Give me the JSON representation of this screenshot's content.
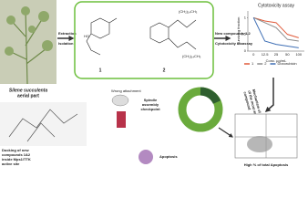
{
  "plant_caption": [
    "Silene succulenta",
    "aerial part"
  ],
  "steps": {
    "extraction": "Extraction",
    "isolation": "Isolation",
    "new_compounds": "New compounds 1,2",
    "bioassay": "Cytotoxicity bioassay"
  },
  "structures": {
    "label_1": "1",
    "label_2": "2",
    "chain_a": "(CH₂)₁₄CH₃",
    "chain_b": "(CH₂)₁₄CH₃",
    "ho": "HO"
  },
  "mechanism": [
    "Mechanism of cytotoxicity",
    "of the most active",
    "compound"
  ],
  "docking": [
    "Docking of new",
    "compounds 1&2",
    "inside Mps1/TTK",
    "active site"
  ],
  "cell_cycle": {
    "wrong": "Wrong attachment",
    "spindle": [
      "Spindle",
      "assembly",
      "checkpoint"
    ],
    "apoptosis": "Apoptosis"
  },
  "result": "High % of total Apoptosis",
  "chart_data": {
    "type": "line",
    "title": "Cytotoxicity assay",
    "y_label": "Surviving fraction",
    "x_label": "Conc. µg/mL",
    "categories": [
      "0",
      "12.5",
      "25",
      "50",
      "100"
    ],
    "ylim": [
      0,
      1.2
    ],
    "yticks": [
      0,
      0.5,
      1
    ],
    "series": [
      {
        "name": "1",
        "color": "#e05a3a",
        "values": [
          1,
          0.9,
          0.85,
          0.5,
          0.4
        ]
      },
      {
        "name": "2",
        "color": "#8c8c8c",
        "values": [
          1,
          0.85,
          0.7,
          0.35,
          0.3
        ]
      },
      {
        "name": "Doxorubicin",
        "color": "#3f6fb5",
        "values": [
          1,
          0.3,
          0.2,
          0.15,
          0.1
        ]
      }
    ]
  }
}
